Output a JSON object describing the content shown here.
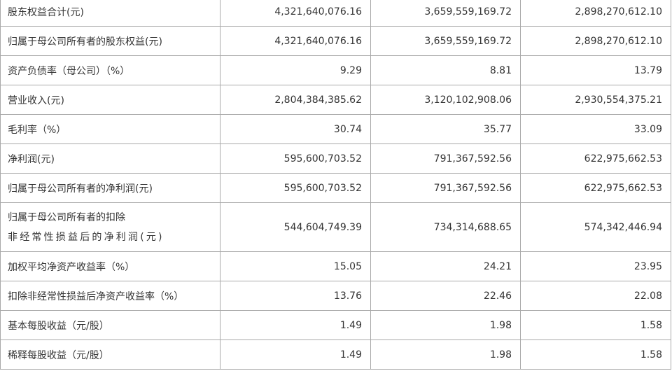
{
  "table": {
    "rows": [
      {
        "label": "股东权益合计(元)",
        "values": [
          "4,321,640,076.16",
          "3,659,559,169.72",
          "2,898,270,612.10"
        ]
      },
      {
        "label": "归属于母公司所有者的股东权益(元)",
        "values": [
          "4,321,640,076.16",
          "3,659,559,169.72",
          "2,898,270,612.10"
        ]
      },
      {
        "label": "资产负债率（母公司）（%）",
        "values": [
          "9.29",
          "8.81",
          "13.79"
        ]
      },
      {
        "label": "营业收入(元)",
        "values": [
          "2,804,384,385.62",
          "3,120,102,908.06",
          "2,930,554,375.21"
        ]
      },
      {
        "label": "毛利率（%）",
        "values": [
          "30.74",
          "35.77",
          "33.09"
        ]
      },
      {
        "label": "净利润(元)",
        "values": [
          "595,600,703.52",
          "791,367,592.56",
          "622,975,662.53"
        ]
      },
      {
        "label": "归属于母公司所有者的净利润(元)",
        "values": [
          "595,600,703.52",
          "791,367,592.56",
          "622,975,662.53"
        ]
      },
      {
        "label_line1": "归属于母公司所有者的扣除",
        "label_line2": "非经常性损益后的净利润(元)",
        "values": [
          "544,604,749.39",
          "734,314,688.65",
          "574,342,446.94"
        ]
      },
      {
        "label": "加权平均净资产收益率（%）",
        "values": [
          "15.05",
          "24.21",
          "23.95"
        ]
      },
      {
        "label": "扣除非经常性损益后净资产收益率（%）",
        "values": [
          "13.76",
          "22.46",
          "22.08"
        ]
      },
      {
        "label": "基本每股收益（元/股）",
        "values": [
          "1.49",
          "1.98",
          "1.58"
        ]
      },
      {
        "label": "稀释每股收益（元/股）",
        "values": [
          "1.49",
          "1.98",
          "1.58"
        ]
      }
    ]
  }
}
